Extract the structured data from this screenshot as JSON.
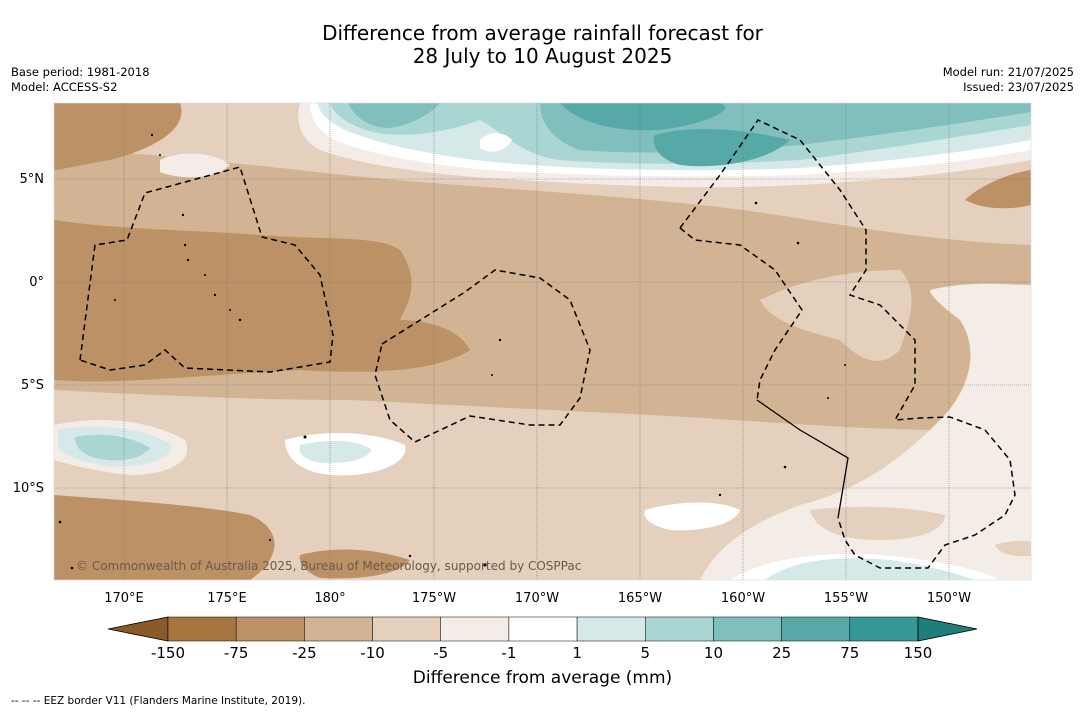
{
  "title_line1": "Difference from average rainfall forecast for",
  "title_line2": "28 July to 10 August 2025",
  "base_period": "Base period: 1981-2018",
  "model": "Model: ACCESS-S2",
  "model_run": "Model run: 21/07/2025",
  "issued": "Issued: 23/07/2025",
  "copyright": "© Commonwealth of Australia 2025, Bureau of Meteorology, supported by COSPPac",
  "lat_labels": [
    "5°N",
    "0°",
    "5°S",
    "10°S"
  ],
  "lon_labels": [
    "170°E",
    "175°E",
    "180°",
    "175°W",
    "170°W",
    "165°W",
    "160°W",
    "155°W",
    "150°W"
  ],
  "colorbar": {
    "title": "Difference from average (mm)",
    "ticks": [
      "-150",
      "-75",
      "-25",
      "-10",
      "-5",
      "-1",
      "1",
      "5",
      "10",
      "25",
      "75",
      "150"
    ],
    "colors": [
      "#a87440",
      "#bd9166",
      "#d2b494",
      "#e4d0bd",
      "#f4ece6",
      "#ffffff",
      "#d5e9e8",
      "#a9d5d3",
      "#80bfbd",
      "#57a9a7",
      "#339896"
    ],
    "under_color": "#8b5a2b",
    "over_color": "#1f7d7a"
  },
  "footnote": "-- -- -- EEZ border V11 (Flanders Marine Institute, 2019)."
}
